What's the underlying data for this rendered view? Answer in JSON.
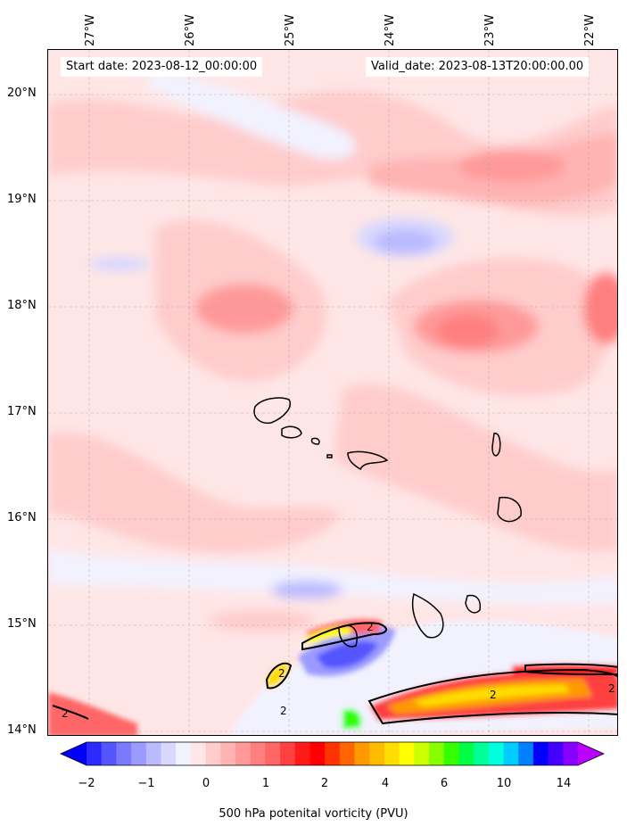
{
  "map": {
    "start_date": "Start date: 2023-08-12_00:00:00",
    "valid_date": "Valid_date: 2023-08-13T20:00:00.00",
    "lon_labels": [
      "27°W",
      "26°W",
      "25°W",
      "24°W",
      "23°W",
      "22°W"
    ],
    "lat_labels": [
      "20°N",
      "19°N",
      "18°N",
      "17°N",
      "16°N",
      "15°N",
      "14°N"
    ],
    "contour_label": "2"
  },
  "colorbar": {
    "label": "500 hPa potenital vorticity (PVU)",
    "ticks": [
      "−2",
      "−1",
      "0",
      "1",
      "2",
      "4",
      "6",
      "10",
      "14"
    ],
    "colors": [
      "#0000ff",
      "#2a2aff",
      "#5555ff",
      "#7a7aff",
      "#9b9bff",
      "#babaff",
      "#d8d8ff",
      "#f2f2ff",
      "#ffe6e6",
      "#ffcccc",
      "#ffb3b3",
      "#ff9999",
      "#ff7f7f",
      "#ff6666",
      "#ff4040",
      "#ff1a1a",
      "#ff0000",
      "#ff3300",
      "#ff6600",
      "#ff9900",
      "#ffbb00",
      "#ffdd00",
      "#ffff00",
      "#ccff00",
      "#88ff00",
      "#33ff00",
      "#00ff44",
      "#00ff99",
      "#00ffdd",
      "#00ccff",
      "#0080ff",
      "#0000ff",
      "#4400ff",
      "#8800ff",
      "#bb00ff"
    ]
  }
}
